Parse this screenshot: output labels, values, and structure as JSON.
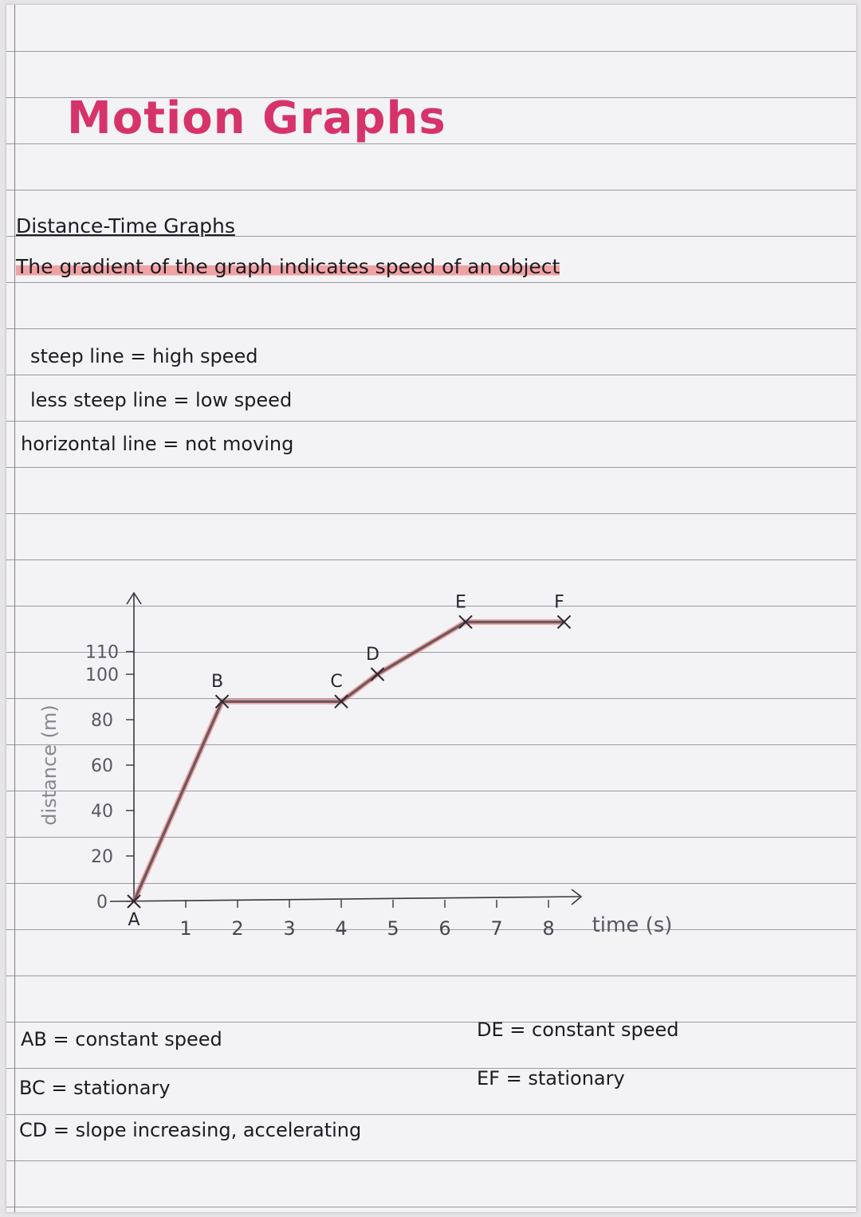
{
  "title": "Motion Graphs",
  "subheading": "Distance-Time Graphs",
  "gradient_note": "The gradient of the graph indicates speed of an object",
  "rules": [
    "steep line = high speed",
    "less steep line = low speed",
    "horizontal line = not moving"
  ],
  "colors": {
    "title": "#d6336a",
    "highlight": "#ee7878",
    "line": "#6e5a60"
  },
  "chart_data": {
    "type": "line",
    "title": "",
    "xlabel": "time (s)",
    "ylabel": "distance (m)",
    "xlim": [
      0,
      8.5
    ],
    "ylim": [
      0,
      115
    ],
    "x_ticks": [
      1,
      2,
      3,
      4,
      5,
      6,
      7,
      8
    ],
    "y_ticks": [
      0,
      20,
      40,
      60,
      80,
      100,
      110
    ],
    "grid": false,
    "series": [
      {
        "points": [
          {
            "label": "A",
            "x": 0,
            "y": 0
          },
          {
            "label": "B",
            "x": 1.7,
            "y": 88
          },
          {
            "label": "C",
            "x": 4,
            "y": 88
          },
          {
            "label": "D",
            "x": 4.7,
            "y": 100
          },
          {
            "label": "E",
            "x": 6.4,
            "y": 123
          },
          {
            "label": "F",
            "x": 8.3,
            "y": 123
          }
        ]
      }
    ]
  },
  "segments": {
    "ab": "AB = constant speed",
    "bc": "BC = stationary",
    "cd": "CD = slope increasing, accelerating",
    "de": "DE = constant speed",
    "ef": "EF = stationary"
  }
}
